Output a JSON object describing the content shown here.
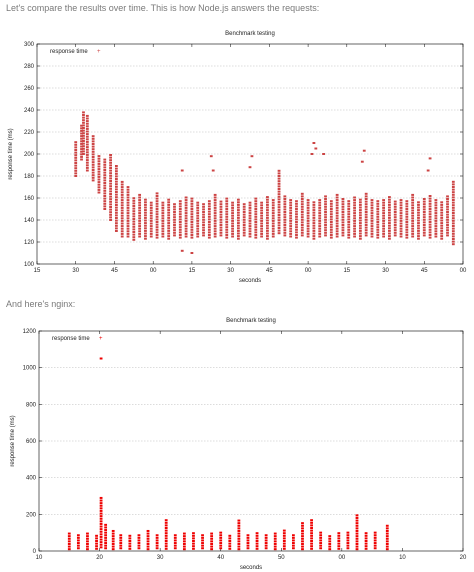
{
  "intro_text": "Let's compare the results over time. This is how Node.js answers the requests:",
  "nginx_text": "And here's nginx:",
  "colors": {
    "series": "#cc4444",
    "series2": "#ee0000"
  },
  "chart_data": [
    {
      "type": "scatter",
      "title": "Benchmark testing",
      "xlabel": "seconds",
      "ylabel": "response time (ms)",
      "ylim": [
        100,
        300
      ],
      "yticks": [
        "100",
        "120",
        "140",
        "160",
        "180",
        "200",
        "220",
        "240",
        "260",
        "280",
        "300"
      ],
      "xticks": [
        "15",
        "30",
        "45",
        "00",
        "15",
        "30",
        "45",
        "00",
        "15",
        "30",
        "45",
        "00"
      ],
      "grid": "horizontal dashed",
      "legend": "top-left",
      "series": [
        {
          "name": "response time",
          "columns": [
            {
              "x": 1.0,
              "lo": 180,
              "hi": 212
            },
            {
              "x": 1.15,
              "lo": 195,
              "hi": 228
            },
            {
              "x": 1.2,
              "lo": 200,
              "hi": 240
            },
            {
              "x": 1.3,
              "lo": 185,
              "hi": 235
            },
            {
              "x": 1.45,
              "lo": 176,
              "hi": 218
            },
            {
              "x": 1.6,
              "lo": 165,
              "hi": 200
            },
            {
              "x": 1.75,
              "lo": 150,
              "hi": 195
            },
            {
              "x": 1.9,
              "lo": 140,
              "hi": 200
            },
            {
              "x": 2.05,
              "lo": 130,
              "hi": 190
            },
            {
              "x": 2.2,
              "lo": 125,
              "hi": 175
            },
            {
              "x": 2.35,
              "lo": 125,
              "hi": 170
            },
            {
              "x": 2.5,
              "lo": 122,
              "hi": 160
            },
            {
              "x": 2.65,
              "lo": 125,
              "hi": 165
            },
            {
              "x": 2.8,
              "lo": 123,
              "hi": 160
            },
            {
              "x": 2.95,
              "lo": 125,
              "hi": 158
            },
            {
              "x": 3.1,
              "lo": 124,
              "hi": 165
            },
            {
              "x": 3.25,
              "lo": 125,
              "hi": 158
            },
            {
              "x": 3.4,
              "lo": 123,
              "hi": 160
            },
            {
              "x": 3.55,
              "lo": 126,
              "hi": 156
            },
            {
              "x": 3.7,
              "lo": 124,
              "hi": 158
            },
            {
              "x": 3.85,
              "lo": 125,
              "hi": 162
            },
            {
              "x": 4.0,
              "lo": 124,
              "hi": 160
            },
            {
              "x": 4.15,
              "lo": 125,
              "hi": 158
            },
            {
              "x": 4.3,
              "lo": 126,
              "hi": 156
            },
            {
              "x": 4.45,
              "lo": 124,
              "hi": 158
            },
            {
              "x": 4.6,
              "lo": 125,
              "hi": 163
            },
            {
              "x": 4.75,
              "lo": 126,
              "hi": 157
            },
            {
              "x": 4.9,
              "lo": 124,
              "hi": 160
            },
            {
              "x": 5.05,
              "lo": 125,
              "hi": 158
            },
            {
              "x": 5.2,
              "lo": 123,
              "hi": 160
            },
            {
              "x": 5.35,
              "lo": 126,
              "hi": 156
            },
            {
              "x": 5.5,
              "lo": 125,
              "hi": 158
            },
            {
              "x": 5.65,
              "lo": 124,
              "hi": 160
            },
            {
              "x": 5.8,
              "lo": 125,
              "hi": 158
            },
            {
              "x": 5.95,
              "lo": 123,
              "hi": 162
            },
            {
              "x": 6.1,
              "lo": 125,
              "hi": 159
            },
            {
              "x": 6.25,
              "lo": 128,
              "hi": 185
            },
            {
              "x": 6.4,
              "lo": 126,
              "hi": 163
            },
            {
              "x": 6.55,
              "lo": 125,
              "hi": 160
            },
            {
              "x": 6.7,
              "lo": 124,
              "hi": 158
            },
            {
              "x": 6.85,
              "lo": 126,
              "hi": 165
            },
            {
              "x": 7.0,
              "lo": 125,
              "hi": 160
            },
            {
              "x": 7.15,
              "lo": 123,
              "hi": 158
            },
            {
              "x": 7.3,
              "lo": 125,
              "hi": 160
            },
            {
              "x": 7.45,
              "lo": 126,
              "hi": 162
            },
            {
              "x": 7.6,
              "lo": 124,
              "hi": 159
            },
            {
              "x": 7.75,
              "lo": 125,
              "hi": 163
            },
            {
              "x": 7.9,
              "lo": 126,
              "hi": 160
            },
            {
              "x": 8.05,
              "lo": 124,
              "hi": 158
            },
            {
              "x": 8.2,
              "lo": 125,
              "hi": 162
            },
            {
              "x": 8.35,
              "lo": 123,
              "hi": 159
            },
            {
              "x": 8.5,
              "lo": 126,
              "hi": 165
            },
            {
              "x": 8.65,
              "lo": 125,
              "hi": 160
            },
            {
              "x": 8.8,
              "lo": 124,
              "hi": 158
            },
            {
              "x": 8.95,
              "lo": 125,
              "hi": 160
            },
            {
              "x": 9.1,
              "lo": 123,
              "hi": 162
            },
            {
              "x": 9.25,
              "lo": 126,
              "hi": 159
            },
            {
              "x": 9.4,
              "lo": 125,
              "hi": 160
            },
            {
              "x": 9.55,
              "lo": 124,
              "hi": 158
            },
            {
              "x": 9.7,
              "lo": 125,
              "hi": 165
            },
            {
              "x": 9.85,
              "lo": 123,
              "hi": 158
            },
            {
              "x": 10.0,
              "lo": 126,
              "hi": 160
            },
            {
              "x": 10.15,
              "lo": 124,
              "hi": 162
            },
            {
              "x": 10.3,
              "lo": 125,
              "hi": 160
            },
            {
              "x": 10.45,
              "lo": 123,
              "hi": 158
            },
            {
              "x": 10.6,
              "lo": 126,
              "hi": 163
            },
            {
              "x": 10.75,
              "lo": 118,
              "hi": 175
            }
          ],
          "outliers": [
            {
              "x": 3.75,
              "y": 185
            },
            {
              "x": 4.55,
              "y": 185
            },
            {
              "x": 4.5,
              "y": 198
            },
            {
              "x": 5.5,
              "y": 188
            },
            {
              "x": 5.55,
              "y": 198
            },
            {
              "x": 7.15,
              "y": 210
            },
            {
              "x": 7.1,
              "y": 200
            },
            {
              "x": 7.2,
              "y": 205
            },
            {
              "x": 7.4,
              "y": 200
            },
            {
              "x": 8.45,
              "y": 203
            },
            {
              "x": 8.4,
              "y": 193
            },
            {
              "x": 10.15,
              "y": 196
            },
            {
              "x": 10.1,
              "y": 185
            },
            {
              "x": 4.0,
              "y": 110
            },
            {
              "x": 3.75,
              "y": 112
            }
          ]
        }
      ]
    },
    {
      "type": "scatter",
      "title": "Benchmark testing",
      "xlabel": "seconds",
      "ylabel": "response time (ms)",
      "ylim": [
        0,
        1200
      ],
      "yticks": [
        "0",
        "200",
        "400",
        "600",
        "800",
        "1000",
        "1200"
      ],
      "xticks": [
        "10",
        "20",
        "30",
        "40",
        "50",
        "00",
        "10",
        "20"
      ],
      "grid": "horizontal dashed",
      "legend": "top-left",
      "series": [
        {
          "name": "response time",
          "columns": [
            {
              "x": 1.0,
              "lo": 10,
              "hi": 100
            },
            {
              "x": 1.3,
              "lo": 15,
              "hi": 90
            },
            {
              "x": 1.6,
              "lo": 10,
              "hi": 105
            },
            {
              "x": 1.9,
              "lo": 12,
              "hi": 85
            },
            {
              "x": 2.2,
              "lo": 15,
              "hi": 150
            },
            {
              "x": 2.45,
              "lo": 10,
              "hi": 110
            },
            {
              "x": 2.7,
              "lo": 15,
              "hi": 95
            },
            {
              "x": 3.0,
              "lo": 12,
              "hi": 90
            },
            {
              "x": 3.3,
              "lo": 15,
              "hi": 100
            },
            {
              "x": 3.6,
              "lo": 10,
              "hi": 120
            },
            {
              "x": 3.9,
              "lo": 15,
              "hi": 90
            },
            {
              "x": 4.2,
              "lo": 12,
              "hi": 180
            },
            {
              "x": 4.5,
              "lo": 15,
              "hi": 95
            },
            {
              "x": 4.8,
              "lo": 10,
              "hi": 100
            },
            {
              "x": 5.1,
              "lo": 12,
              "hi": 110
            },
            {
              "x": 5.4,
              "lo": 15,
              "hi": 95
            },
            {
              "x": 5.7,
              "lo": 10,
              "hi": 100
            },
            {
              "x": 6.0,
              "lo": 15,
              "hi": 110
            },
            {
              "x": 6.3,
              "lo": 12,
              "hi": 95
            },
            {
              "x": 6.6,
              "lo": 10,
              "hi": 175
            },
            {
              "x": 6.9,
              "lo": 15,
              "hi": 100
            },
            {
              "x": 7.2,
              "lo": 12,
              "hi": 110
            },
            {
              "x": 7.5,
              "lo": 15,
              "hi": 95
            },
            {
              "x": 7.8,
              "lo": 10,
              "hi": 100
            },
            {
              "x": 8.1,
              "lo": 12,
              "hi": 120
            },
            {
              "x": 8.4,
              "lo": 15,
              "hi": 95
            },
            {
              "x": 8.7,
              "lo": 10,
              "hi": 165
            },
            {
              "x": 9.0,
              "lo": 12,
              "hi": 180
            },
            {
              "x": 9.3,
              "lo": 15,
              "hi": 110
            },
            {
              "x": 9.6,
              "lo": 10,
              "hi": 95
            },
            {
              "x": 9.9,
              "lo": 12,
              "hi": 100
            },
            {
              "x": 10.2,
              "lo": 15,
              "hi": 110
            },
            {
              "x": 10.5,
              "lo": 10,
              "hi": 200
            },
            {
              "x": 10.8,
              "lo": 12,
              "hi": 100
            },
            {
              "x": 11.1,
              "lo": 15,
              "hi": 110
            },
            {
              "x": 11.5,
              "lo": 10,
              "hi": 150
            },
            {
              "x": 2.05,
              "lo": 20,
              "hi": 300
            }
          ],
          "outliers": [
            {
              "x": 2.05,
              "y": 1050
            }
          ]
        }
      ]
    }
  ]
}
